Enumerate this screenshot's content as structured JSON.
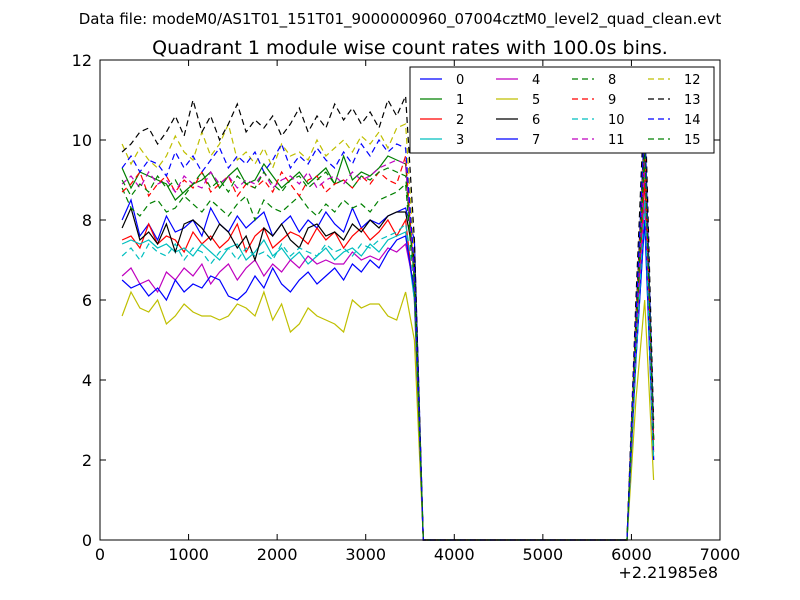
{
  "chart_data": {
    "type": "line",
    "suptitle": "Data file: modeM0/AS1T01_151T01_9000000960_07004cztM0_level2_quad_clean.evt",
    "title": "Quadrant 1 module wise count rates with 100.0s bins.",
    "xlabel": "",
    "ylabel": "",
    "x_offset_label": "+2.21985e8",
    "xlim": [
      0,
      7000
    ],
    "ylim": [
      0,
      12
    ],
    "x_ticks": [
      0,
      1000,
      2000,
      3000,
      4000,
      5000,
      6000,
      7000
    ],
    "y_ticks": [
      0,
      2,
      4,
      6,
      8,
      10,
      12
    ],
    "grid": false,
    "legend_position": "top-right",
    "legend_columns": 4,
    "x_active": [
      250,
      350,
      450,
      550,
      650,
      750,
      850,
      950,
      1050,
      1150,
      1250,
      1350,
      1450,
      1550,
      1650,
      1750,
      1850,
      1950,
      2050,
      2150,
      2250,
      2350,
      2450,
      2550,
      2650,
      2750,
      2850,
      2950,
      3050,
      3150,
      3250,
      3350,
      3450,
      3550
    ],
    "x_tail": [
      3650,
      3750,
      3850,
      3950,
      4050,
      4150,
      4250,
      4350,
      4450,
      4550,
      4650,
      4750,
      4850,
      4950,
      5050,
      5150,
      5250,
      5350,
      5450,
      5550,
      5650,
      5750,
      5850,
      5950,
      6050,
      6150,
      6250
    ],
    "series": [
      {
        "name": "0",
        "color": "#0000ff",
        "dash": "solid",
        "values": [
          8.0,
          8.5,
          7.6,
          7.9,
          7.5,
          8.1,
          7.7,
          7.8,
          8.0,
          7.6,
          8.3,
          7.9,
          7.7,
          8.1,
          7.8,
          8.0,
          8.2,
          7.6,
          7.9,
          8.1,
          7.7,
          8.0,
          7.8,
          8.2,
          7.9,
          7.7,
          8.3,
          7.8,
          8.0,
          7.9,
          8.1,
          8.2,
          8.3,
          7.5
        ],
        "tail": [
          0,
          0,
          0,
          0,
          0,
          0,
          0,
          0,
          0,
          0,
          0,
          0,
          0,
          0,
          0,
          0,
          0,
          0,
          0,
          0,
          0,
          0,
          0,
          0,
          5.5,
          10.5,
          2.5
        ]
      },
      {
        "name": "1",
        "color": "#008000",
        "dash": "solid",
        "values": [
          9.3,
          8.8,
          9.2,
          9.1,
          9.0,
          8.9,
          8.5,
          8.7,
          8.9,
          9.0,
          9.2,
          8.8,
          9.1,
          9.3,
          8.9,
          9.0,
          9.4,
          9.1,
          8.8,
          9.0,
          9.2,
          8.9,
          9.1,
          9.3,
          8.9,
          9.6,
          9.0,
          9.2,
          9.1,
          9.3,
          9.6,
          9.5,
          9.4,
          6.5
        ],
        "tail": [
          0,
          0,
          0,
          0,
          0,
          0,
          0,
          0,
          0,
          0,
          0,
          0,
          0,
          0,
          0,
          0,
          0,
          0,
          0,
          0,
          0,
          0,
          0,
          0,
          5.0,
          9.5,
          2.5
        ]
      },
      {
        "name": "2",
        "color": "#ff0000",
        "dash": "solid",
        "values": [
          7.5,
          7.6,
          7.3,
          7.9,
          7.4,
          7.6,
          7.5,
          7.2,
          7.7,
          7.4,
          7.6,
          7.3,
          7.5,
          7.9,
          7.2,
          7.6,
          7.8,
          7.3,
          7.5,
          7.7,
          7.6,
          7.4,
          7.8,
          7.5,
          7.7,
          7.3,
          7.6,
          7.8,
          7.5,
          7.7,
          8.0,
          7.6,
          8.0,
          6.0
        ],
        "tail": [
          0,
          0,
          0,
          0,
          0,
          0,
          0,
          0,
          0,
          0,
          0,
          0,
          0,
          0,
          0,
          0,
          0,
          0,
          0,
          0,
          0,
          0,
          0,
          0,
          5.0,
          9.0,
          2.2
        ]
      },
      {
        "name": "3",
        "color": "#00bfbf",
        "dash": "solid",
        "values": [
          7.4,
          7.5,
          7.4,
          7.5,
          7.3,
          7.4,
          7.2,
          7.3,
          7.1,
          7.4,
          7.2,
          7.0,
          7.3,
          7.4,
          7.0,
          7.2,
          7.5,
          7.1,
          7.3,
          7.0,
          7.2,
          6.9,
          7.1,
          7.3,
          7.0,
          7.2,
          7.3,
          7.1,
          7.4,
          7.2,
          7.5,
          7.6,
          7.7,
          6.0
        ],
        "tail": [
          0,
          0,
          0,
          0,
          0,
          0,
          0,
          0,
          0,
          0,
          0,
          0,
          0,
          0,
          0,
          0,
          0,
          0,
          0,
          0,
          0,
          0,
          0,
          0,
          4.5,
          8.0,
          2.0
        ]
      },
      {
        "name": "4",
        "color": "#bf00bf",
        "dash": "solid",
        "values": [
          6.6,
          6.8,
          6.4,
          6.5,
          6.2,
          6.7,
          6.5,
          6.8,
          6.6,
          6.9,
          6.4,
          6.7,
          6.9,
          6.5,
          6.8,
          7.0,
          6.6,
          6.9,
          6.7,
          7.0,
          6.8,
          7.1,
          6.9,
          7.0,
          6.9,
          6.9,
          7.2,
          7.0,
          7.1,
          7.0,
          7.3,
          7.2,
          7.4,
          6.3
        ],
        "tail": [
          0,
          0,
          0,
          0,
          0,
          0,
          0,
          0,
          0,
          0,
          0,
          0,
          0,
          0,
          0,
          0,
          0,
          0,
          0,
          0,
          0,
          0,
          0,
          0,
          4.5,
          8.5,
          2.0
        ]
      },
      {
        "name": "5",
        "color": "#bfbf00",
        "dash": "solid",
        "values": [
          5.6,
          6.2,
          5.8,
          5.7,
          6.0,
          5.4,
          5.6,
          5.9,
          5.7,
          5.6,
          5.6,
          5.5,
          5.6,
          5.9,
          5.8,
          5.6,
          6.2,
          5.5,
          5.9,
          5.2,
          5.4,
          5.8,
          5.6,
          5.5,
          5.4,
          5.2,
          6.0,
          5.8,
          5.9,
          5.9,
          5.6,
          5.5,
          6.2,
          5.0
        ],
        "tail": [
          0,
          0,
          0,
          0,
          0,
          0,
          0,
          0,
          0,
          0,
          0,
          0,
          0,
          0,
          0,
          0,
          0,
          0,
          0,
          0,
          0,
          0,
          0,
          0,
          3.5,
          6.0,
          1.5
        ]
      },
      {
        "name": "6",
        "color": "#000000",
        "dash": "solid",
        "values": [
          7.8,
          8.3,
          7.5,
          7.7,
          7.4,
          7.9,
          7.2,
          7.9,
          8.0,
          7.8,
          7.5,
          7.9,
          7.7,
          7.3,
          7.6,
          7.0,
          7.8,
          7.6,
          7.9,
          7.5,
          7.3,
          7.8,
          7.9,
          7.6,
          7.7,
          7.5,
          7.9,
          7.7,
          8.0,
          7.8,
          8.1,
          8.2,
          8.2,
          7.0
        ],
        "tail": [
          0,
          0,
          0,
          0,
          0,
          0,
          0,
          0,
          0,
          0,
          0,
          0,
          0,
          0,
          0,
          0,
          0,
          0,
          0,
          0,
          0,
          0,
          0,
          0,
          5.5,
          10.0,
          2.5
        ]
      },
      {
        "name": "7",
        "color": "#0000ff",
        "dash": "solid",
        "values": [
          6.5,
          6.3,
          6.4,
          6.1,
          6.3,
          6.0,
          6.5,
          6.2,
          6.4,
          6.3,
          6.6,
          6.5,
          6.1,
          6.0,
          6.2,
          6.6,
          6.3,
          6.8,
          6.4,
          6.2,
          6.5,
          6.7,
          6.4,
          6.6,
          6.8,
          6.5,
          6.9,
          6.7,
          7.0,
          6.8,
          7.2,
          7.5,
          7.6,
          6.2
        ],
        "tail": [
          0,
          0,
          0,
          0,
          0,
          0,
          0,
          0,
          0,
          0,
          0,
          0,
          0,
          0,
          0,
          0,
          0,
          0,
          0,
          0,
          0,
          0,
          0,
          0,
          4.5,
          8.0,
          2.0
        ]
      },
      {
        "name": "8",
        "color": "#008000",
        "dash": "dashed",
        "values": [
          8.8,
          8.3,
          8.1,
          8.4,
          8.5,
          8.2,
          8.3,
          8.6,
          8.4,
          8.2,
          8.5,
          8.3,
          8.1,
          8.4,
          8.6,
          8.0,
          8.5,
          8.3,
          8.2,
          8.4,
          8.6,
          8.3,
          8.1,
          8.4,
          8.2,
          8.5,
          8.3,
          8.4,
          8.2,
          8.5,
          8.6,
          8.7,
          8.9,
          6.2
        ],
        "tail": [
          0,
          0,
          0,
          0,
          0,
          0,
          0,
          0,
          0,
          0,
          0,
          0,
          0,
          0,
          0,
          0,
          0,
          0,
          0,
          0,
          0,
          0,
          0,
          0,
          5.0,
          9.5,
          2.3
        ]
      },
      {
        "name": "9",
        "color": "#ff0000",
        "dash": "dashed",
        "values": [
          8.7,
          8.9,
          9.2,
          8.6,
          8.9,
          9.1,
          8.7,
          9.0,
          8.8,
          9.2,
          8.7,
          8.9,
          9.1,
          8.6,
          8.9,
          8.8,
          9.0,
          8.7,
          9.2,
          8.9,
          8.6,
          9.0,
          9.1,
          8.7,
          8.9,
          9.0,
          8.8,
          9.1,
          8.9,
          9.2,
          9.0,
          8.9,
          9.6,
          6.5
        ],
        "tail": [
          0,
          0,
          0,
          0,
          0,
          0,
          0,
          0,
          0,
          0,
          0,
          0,
          0,
          0,
          0,
          0,
          0,
          0,
          0,
          0,
          0,
          0,
          0,
          0,
          5.5,
          10.0,
          2.5
        ]
      },
      {
        "name": "10",
        "color": "#00bfbf",
        "dash": "dashed",
        "values": [
          7.1,
          7.3,
          7.0,
          7.4,
          7.2,
          7.1,
          7.4,
          7.0,
          7.3,
          7.2,
          6.9,
          7.2,
          7.3,
          7.0,
          7.3,
          7.1,
          7.2,
          7.0,
          7.4,
          7.1,
          7.3,
          7.2,
          7.1,
          7.4,
          7.2,
          7.3,
          7.1,
          7.4,
          7.3,
          7.5,
          7.6,
          7.7,
          7.9,
          6.5
        ],
        "tail": [
          0,
          0,
          0,
          0,
          0,
          0,
          0,
          0,
          0,
          0,
          0,
          0,
          0,
          0,
          0,
          0,
          0,
          0,
          0,
          0,
          0,
          0,
          0,
          0,
          4.5,
          8.5,
          2.0
        ]
      },
      {
        "name": "11",
        "color": "#bf00bf",
        "dash": "dashed",
        "values": [
          8.9,
          9.1,
          8.8,
          9.2,
          8.9,
          9.0,
          8.7,
          9.1,
          8.9,
          8.8,
          9.2,
          8.9,
          9.1,
          8.8,
          9.0,
          8.9,
          9.2,
          8.8,
          9.0,
          9.1,
          8.9,
          9.2,
          8.8,
          9.0,
          9.1,
          8.9,
          9.2,
          9.0,
          9.1,
          9.3,
          9.4,
          9.5,
          9.4,
          6.5
        ],
        "tail": [
          0,
          0,
          0,
          0,
          0,
          0,
          0,
          0,
          0,
          0,
          0,
          0,
          0,
          0,
          0,
          0,
          0,
          0,
          0,
          0,
          0,
          0,
          0,
          0,
          5.0,
          9.5,
          2.5
        ]
      },
      {
        "name": "12",
        "color": "#bfbf00",
        "dash": "dashed",
        "values": [
          9.9,
          9.4,
          9.8,
          9.5,
          9.3,
          9.6,
          10.1,
          9.7,
          9.5,
          10.2,
          9.6,
          9.9,
          10.4,
          9.5,
          9.7,
          9.4,
          9.8,
          9.3,
          9.9,
          9.6,
          9.7,
          9.5,
          10.0,
          9.6,
          9.8,
          10.0,
          9.7,
          10.1,
          9.9,
          10.2,
          9.8,
          10.3,
          10.4,
          7.0
        ],
        "tail": [
          0,
          0,
          0,
          0,
          0,
          0,
          0,
          0,
          0,
          0,
          0,
          0,
          0,
          0,
          0,
          0,
          0,
          0,
          0,
          0,
          0,
          0,
          0,
          0,
          5.5,
          10.5,
          2.8
        ]
      },
      {
        "name": "13",
        "color": "#000000",
        "dash": "dashed",
        "values": [
          9.7,
          9.9,
          10.2,
          10.3,
          9.9,
          10.2,
          10.6,
          10.1,
          11.0,
          10.2,
          10.6,
          10.0,
          10.4,
          10.9,
          10.2,
          10.5,
          10.3,
          10.6,
          10.1,
          10.4,
          10.8,
          10.2,
          10.6,
          10.3,
          10.9,
          10.5,
          10.8,
          10.4,
          10.7,
          10.3,
          11.0,
          10.6,
          11.1,
          7.5
        ],
        "tail": [
          0,
          0,
          0,
          0,
          0,
          0,
          0,
          0,
          0,
          0,
          0,
          0,
          0,
          0,
          0,
          0,
          0,
          0,
          0,
          0,
          0,
          0,
          0,
          0,
          6.0,
          11.2,
          3.0
        ]
      },
      {
        "name": "14",
        "color": "#0000ff",
        "dash": "dashed",
        "values": [
          9.3,
          9.6,
          9.2,
          9.5,
          9.4,
          9.1,
          9.7,
          9.3,
          9.6,
          9.2,
          9.5,
          9.8,
          9.3,
          9.6,
          9.4,
          9.7,
          9.2,
          9.5,
          9.9,
          9.3,
          9.6,
          9.4,
          9.8,
          9.5,
          9.3,
          9.7,
          9.4,
          9.9,
          9.6,
          10.0,
          9.7,
          9.9,
          9.8,
          6.8
        ],
        "tail": [
          0,
          0,
          0,
          0,
          0,
          0,
          0,
          0,
          0,
          0,
          0,
          0,
          0,
          0,
          0,
          0,
          0,
          0,
          0,
          0,
          0,
          0,
          0,
          0,
          5.5,
          10.5,
          2.7
        ]
      },
      {
        "name": "15",
        "color": "#008000",
        "dash": "dashed",
        "values": [
          9.0,
          8.6,
          8.9,
          8.7,
          9.1,
          8.8,
          9.0,
          8.6,
          8.9,
          9.2,
          8.8,
          9.0,
          8.7,
          9.1,
          8.9,
          8.8,
          9.2,
          8.9,
          8.7,
          9.0,
          9.1,
          8.8,
          9.0,
          9.2,
          8.9,
          9.0,
          8.8,
          9.1,
          9.0,
          9.2,
          9.3,
          9.2,
          9.1,
          6.5
        ],
        "tail": [
          0,
          0,
          0,
          0,
          0,
          0,
          0,
          0,
          0,
          0,
          0,
          0,
          0,
          0,
          0,
          0,
          0,
          0,
          0,
          0,
          0,
          0,
          0,
          0,
          5.0,
          9.8,
          2.5
        ]
      }
    ]
  }
}
